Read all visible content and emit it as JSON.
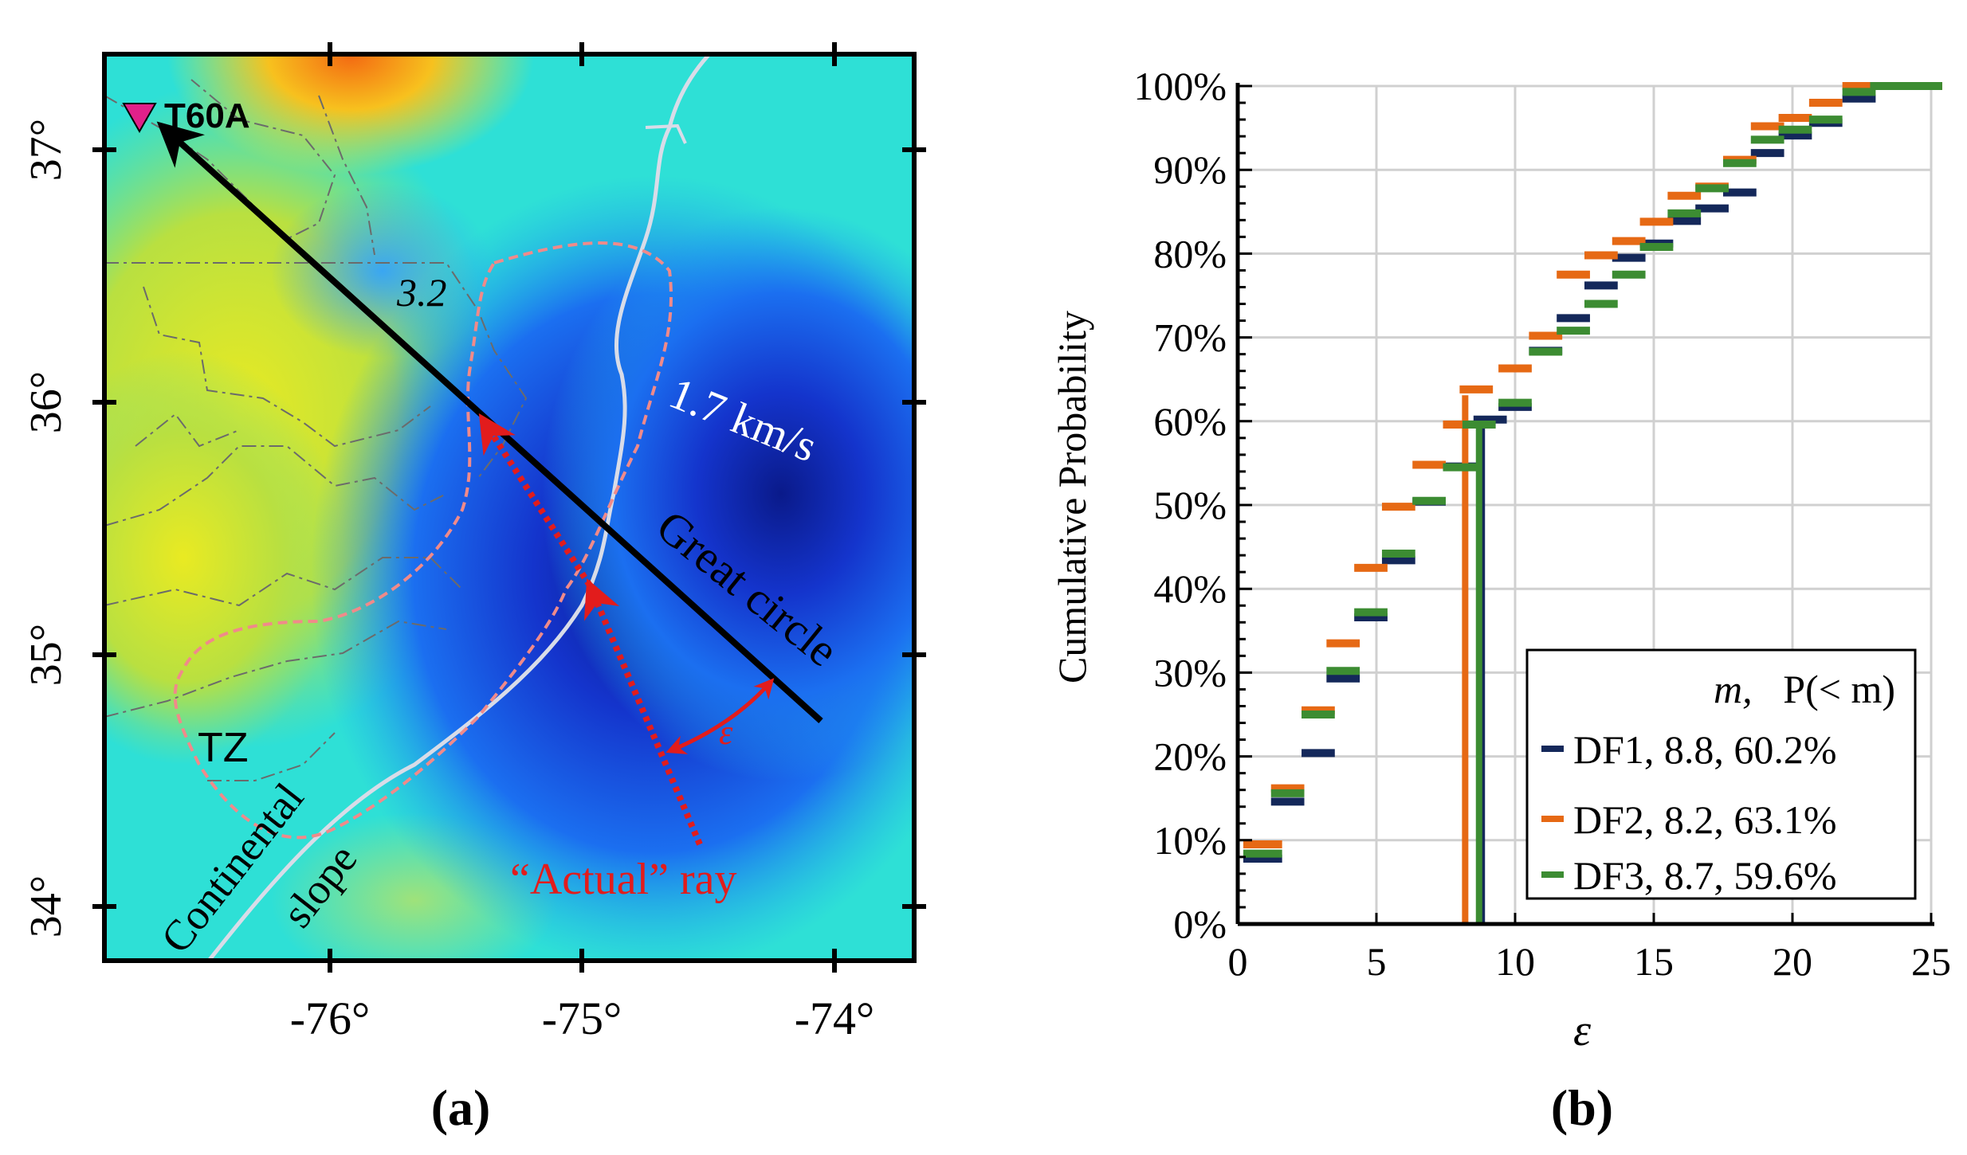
{
  "panel_a": {
    "caption": "(a)",
    "station_label": "T60A",
    "contour_value_label": "3.2",
    "velocity_label": "1.7 km/s",
    "great_circle_label": "Great circle",
    "zone_label": "TZ",
    "slope_label_line1": "Continental",
    "slope_label_line2": "slope",
    "actual_ray_label": "“Actual” ray",
    "epsilon_label": "ε",
    "lat_ticks": [
      "34°",
      "35°",
      "36°",
      "37°"
    ],
    "lon_ticks": [
      "-76°",
      "-75°",
      "-74°"
    ],
    "colors": {
      "great_circle": "#000000",
      "actual_ray": "#e21c1c",
      "contour": "#f08a8a",
      "coast": "#d8dce8",
      "station": "#e0218a"
    }
  },
  "panel_b": {
    "caption": "(b)",
    "legend_header_m": "m,",
    "legend_header_p": "P(< m)",
    "legend_items": [
      {
        "label": "DF1, 8.8, 60.2%",
        "color": "#14285a"
      },
      {
        "label": "DF2, 8.2, 63.1%",
        "color": "#e66914"
      },
      {
        "label": "DF3, 8.7, 59.6%",
        "color": "#3c8c32"
      }
    ]
  },
  "chart_data": {
    "type": "step",
    "title": "",
    "xlabel": "ε",
    "ylabel": "Cumulative Probability",
    "xlim": [
      0,
      25
    ],
    "ylim": [
      0,
      100
    ],
    "x_ticks": [
      0,
      5,
      10,
      15,
      20,
      25
    ],
    "y_ticks": [
      "0%",
      "10%",
      "20%",
      "30%",
      "40%",
      "50%",
      "60%",
      "70%",
      "80%",
      "90%",
      "100%"
    ],
    "grid": true,
    "legend_position": "bottom-right",
    "series": [
      {
        "name": "DF1",
        "color": "#14285a",
        "median": 8.8,
        "p_at_median": 60.2,
        "steps": [
          [
            0.2,
            1.6,
            7.8
          ],
          [
            1.2,
            2.4,
            14.6
          ],
          [
            2.3,
            3.5,
            20.4
          ],
          [
            3.2,
            4.4,
            29.3
          ],
          [
            4.2,
            5.4,
            36.6
          ],
          [
            5.2,
            6.4,
            43.4
          ],
          [
            6.3,
            7.5,
            50.4
          ],
          [
            7.4,
            8.6,
            54.6
          ],
          [
            8.5,
            9.7,
            60.2
          ],
          [
            9.4,
            10.6,
            61.7
          ],
          [
            10.5,
            11.7,
            68.4
          ],
          [
            11.5,
            12.7,
            72.3
          ],
          [
            12.5,
            13.7,
            76.2
          ],
          [
            13.5,
            14.7,
            79.5
          ],
          [
            14.5,
            15.7,
            81.2
          ],
          [
            15.5,
            16.7,
            83.9
          ],
          [
            16.5,
            17.7,
            85.4
          ],
          [
            17.5,
            18.7,
            87.3
          ],
          [
            18.5,
            19.7,
            92.0
          ],
          [
            19.5,
            20.7,
            94.1
          ],
          [
            20.6,
            21.8,
            95.6
          ],
          [
            21.8,
            23.0,
            98.5
          ],
          [
            22.8,
            25.4,
            100.0
          ]
        ]
      },
      {
        "name": "DF2",
        "color": "#e66914",
        "median": 8.2,
        "p_at_median": 63.1,
        "steps": [
          [
            0.2,
            1.6,
            9.5
          ],
          [
            1.2,
            2.4,
            16.2
          ],
          [
            2.3,
            3.5,
            25.5
          ],
          [
            3.2,
            4.4,
            33.5
          ],
          [
            4.2,
            5.4,
            42.5
          ],
          [
            5.2,
            6.4,
            49.8
          ],
          [
            6.3,
            7.5,
            54.8
          ],
          [
            7.4,
            8.6,
            59.6
          ],
          [
            8.0,
            9.2,
            63.8
          ],
          [
            9.4,
            10.6,
            66.3
          ],
          [
            10.5,
            11.7,
            70.2
          ],
          [
            11.5,
            12.7,
            77.5
          ],
          [
            12.5,
            13.7,
            79.8
          ],
          [
            13.5,
            14.7,
            81.5
          ],
          [
            14.5,
            15.7,
            83.8
          ],
          [
            15.5,
            16.7,
            86.9
          ],
          [
            16.5,
            17.7,
            88.0
          ],
          [
            17.5,
            18.7,
            91.2
          ],
          [
            18.5,
            19.7,
            95.2
          ],
          [
            19.5,
            20.7,
            96.2
          ],
          [
            20.6,
            21.8,
            98.0
          ],
          [
            21.8,
            23.0,
            100.0
          ],
          [
            22.8,
            25.4,
            100.0
          ]
        ]
      },
      {
        "name": "DF3",
        "color": "#3c8c32",
        "median": 8.7,
        "p_at_median": 59.6,
        "steps": [
          [
            0.2,
            1.6,
            8.4
          ],
          [
            1.2,
            2.4,
            15.6
          ],
          [
            2.3,
            3.5,
            25.0
          ],
          [
            3.2,
            4.4,
            30.2
          ],
          [
            4.2,
            5.4,
            37.2
          ],
          [
            5.2,
            6.4,
            44.2
          ],
          [
            6.3,
            7.5,
            50.5
          ],
          [
            7.4,
            8.6,
            54.5
          ],
          [
            8.1,
            9.3,
            59.6
          ],
          [
            9.4,
            10.6,
            62.2
          ],
          [
            10.5,
            11.7,
            68.3
          ],
          [
            11.5,
            12.7,
            70.8
          ],
          [
            12.5,
            13.7,
            74.0
          ],
          [
            13.5,
            14.7,
            77.5
          ],
          [
            14.5,
            15.7,
            80.8
          ],
          [
            15.5,
            16.7,
            84.8
          ],
          [
            16.5,
            17.7,
            87.8
          ],
          [
            17.5,
            18.7,
            90.8
          ],
          [
            18.5,
            19.7,
            93.6
          ],
          [
            19.5,
            20.7,
            94.8
          ],
          [
            20.6,
            21.8,
            96.0
          ],
          [
            21.8,
            23.0,
            99.3
          ],
          [
            22.8,
            25.4,
            100.0
          ]
        ]
      }
    ]
  }
}
